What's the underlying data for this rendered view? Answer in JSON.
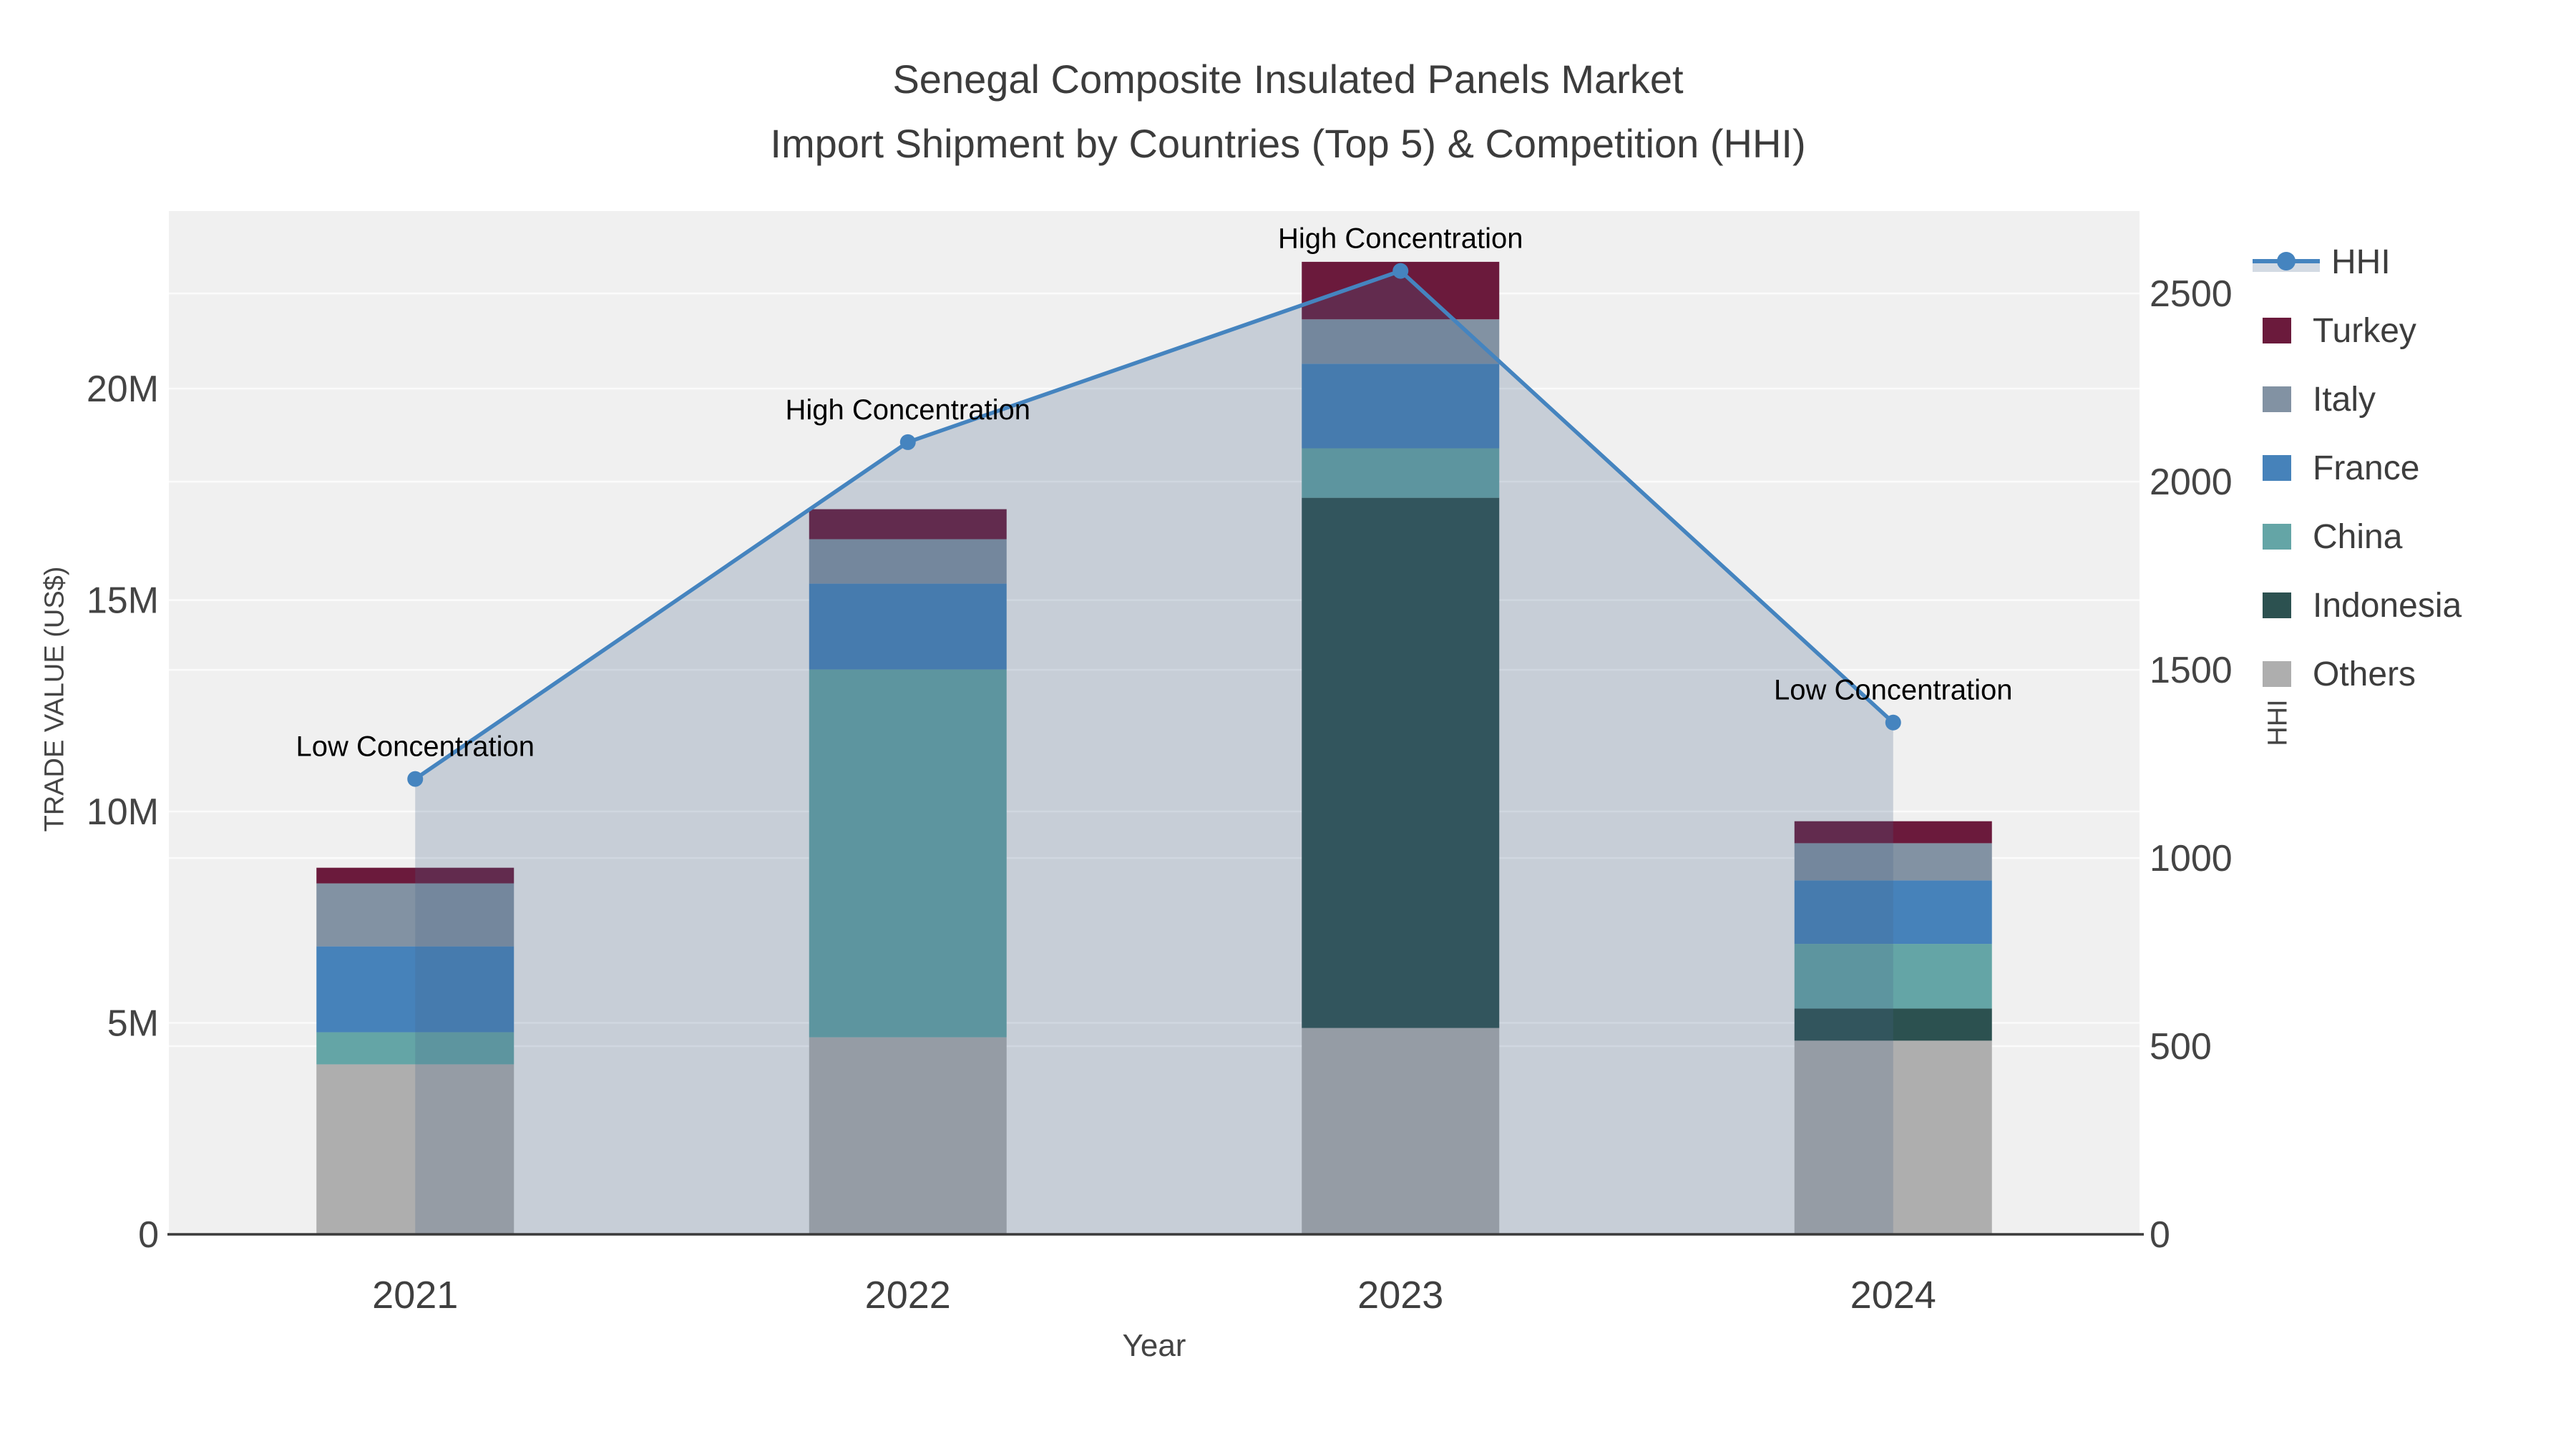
{
  "title": {
    "line1": "Senegal Composite Insulated Panels Market",
    "line2": "Import Shipment by Countries (Top 5) & Competition (HHI)"
  },
  "axes": {
    "x": {
      "title": "Year",
      "categories": [
        "2021",
        "2022",
        "2023",
        "2024"
      ]
    },
    "y_left": {
      "title": "TRADE VALUE (US$)",
      "ticks": [
        {
          "value": 0,
          "label": "0"
        },
        {
          "value": 5,
          "label": "5M"
        },
        {
          "value": 10,
          "label": "10M"
        },
        {
          "value": 15,
          "label": "15M"
        },
        {
          "value": 20,
          "label": "20M"
        }
      ],
      "max": 24.2
    },
    "y_right": {
      "title": "HHI",
      "ticks": [
        {
          "value": 0,
          "label": "0"
        },
        {
          "value": 500,
          "label": "500"
        },
        {
          "value": 1000,
          "label": "1000"
        },
        {
          "value": 1500,
          "label": "1500"
        },
        {
          "value": 2000,
          "label": "2000"
        },
        {
          "value": 2500,
          "label": "2500"
        }
      ],
      "max": 2719
    }
  },
  "legend": {
    "items": [
      {
        "label": "HHI",
        "type": "line",
        "color": "#4584bf"
      },
      {
        "label": "Turkey",
        "type": "box",
        "color": "#6b1a3c"
      },
      {
        "label": "Italy",
        "type": "box",
        "color": "#8292a3"
      },
      {
        "label": "France",
        "type": "box",
        "color": "#4682ba"
      },
      {
        "label": "China",
        "type": "box",
        "color": "#64a5a6"
      },
      {
        "label": "Indonesia",
        "type": "box",
        "color": "#2c5150"
      },
      {
        "label": "Others",
        "type": "box",
        "color": "#aeaeae"
      }
    ]
  },
  "chart_data": {
    "type": "combo: stacked bars (trade value, left axis) + line/area (HHI, right axis)",
    "title": "Senegal Composite Insulated Panels Market — Import Shipment by Countries (Top 5) & Competition (HHI)",
    "categories": [
      "2021",
      "2022",
      "2023",
      "2024"
    ],
    "bar_unit": "million US$",
    "stack_order_note": "series listed bottom-to-top of the stack",
    "series": [
      {
        "name": "Others",
        "color": "#aeaeae",
        "values": [
          4.02,
          4.66,
          4.88,
          4.58
        ]
      },
      {
        "name": "Indonesia",
        "color": "#2c5150",
        "values": [
          0,
          0,
          12.54,
          0.76
        ]
      },
      {
        "name": "China",
        "color": "#64a5a6",
        "values": [
          0.76,
          8.7,
          1.17,
          1.53
        ]
      },
      {
        "name": "France",
        "color": "#4682ba",
        "values": [
          2.03,
          2.03,
          2.0,
          1.5
        ]
      },
      {
        "name": "Italy",
        "color": "#8292a3",
        "values": [
          1.49,
          1.05,
          1.05,
          0.88
        ]
      },
      {
        "name": "Turkey",
        "color": "#6b1a3c",
        "values": [
          0.37,
          0.71,
          1.36,
          0.52
        ]
      }
    ],
    "bar_totals": [
      8.67,
      17.15,
      23.0,
      9.77
    ],
    "line_series": {
      "name": "HHI",
      "color": "#4584bf",
      "fill_color": "rgba(70,100,140,0.24)",
      "values": [
        1210,
        2105,
        2560,
        1360
      ]
    },
    "annotations": [
      "Low Concentration",
      "High Concentration",
      "High Concentration",
      "Low Concentration"
    ],
    "xlabel": "Year",
    "ylabel": "TRADE VALUE (US$)",
    "y2label": "HHI",
    "ylim": [
      0,
      24.2
    ],
    "y2lim": [
      0,
      2719
    ],
    "grid": true,
    "legend_position": "right",
    "plot_bg": "#f0f0f0",
    "grid_color": "rgba(255,255,255,0.75)",
    "axis_line_color": "#3a3a3a",
    "tick_color": "#444444",
    "annotation_color": "#000000"
  }
}
